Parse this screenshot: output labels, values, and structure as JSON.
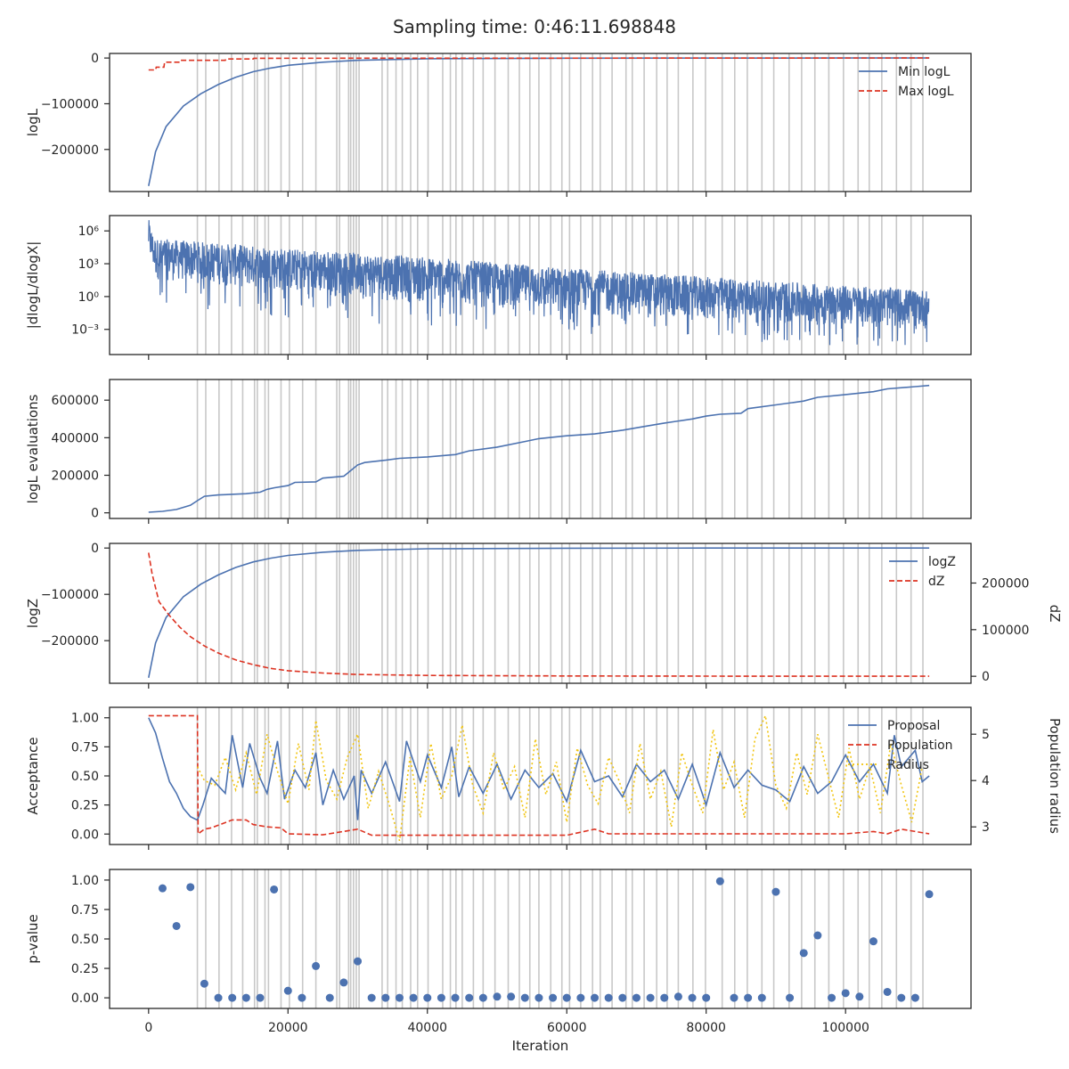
{
  "title": "Sampling time: 0:46:11.698848",
  "xlabel": "Iteration",
  "xticks": [
    0,
    20000,
    40000,
    60000,
    80000,
    100000
  ],
  "xtick_labels": [
    "0",
    "20000",
    "40000",
    "60000",
    "80000",
    "100000"
  ],
  "xlim": [
    -5600,
    118000
  ],
  "colors": {
    "blue": "#4c72b0",
    "red": "#dd3322",
    "gold": "#f1c40f",
    "vline": "#c8c8c8",
    "axis": "#262626"
  },
  "chart_data": [
    {
      "id": "logL",
      "type": "line",
      "ylabel": "logL",
      "ylim": [
        -292000,
        10000
      ],
      "yticks": [
        0,
        -100000,
        -200000
      ],
      "ytick_labels": [
        "0",
        "−100000",
        "−200000"
      ],
      "legend": {
        "placement": "upper-right",
        "entries": [
          "Min logL",
          "Max logL"
        ]
      },
      "series": [
        {
          "name": "Min logL",
          "style": "solid",
          "color": "#4c72b0",
          "x": [
            0,
            1000,
            2500,
            5000,
            7500,
            10000,
            12500,
            15000,
            17500,
            20000,
            25000,
            30000,
            40000,
            60000,
            80000,
            100000,
            112000
          ],
          "y": [
            -280000,
            -205000,
            -150000,
            -105000,
            -78000,
            -58000,
            -42000,
            -30000,
            -22000,
            -16000,
            -9000,
            -5000,
            -1500,
            -300,
            -80,
            -20,
            -5
          ]
        },
        {
          "name": "Max logL",
          "style": "dashed",
          "color": "#dd3322",
          "x": [
            0,
            1000,
            1100,
            2200,
            2300,
            4500,
            4600,
            11000,
            11100,
            15000,
            15100,
            112000
          ],
          "y": [
            -26000,
            -26000,
            -20000,
            -20000,
            -9000,
            -9000,
            -5000,
            -5000,
            -2000,
            -2000,
            -500,
            0
          ]
        }
      ]
    },
    {
      "id": "dlogL",
      "type": "line",
      "ylabel": "|dlogL/dlogX|",
      "scale": "log",
      "ylim_log10": [
        -5.3,
        7.4
      ],
      "yticks_log10": [
        6,
        3,
        0,
        -3
      ],
      "ytick_labels": [
        "10⁶",
        "10³",
        "10⁰",
        "10⁻³"
      ],
      "series": [
        {
          "name": "",
          "style": "noisy",
          "color": "#4c72b0",
          "x": [
            0,
            500,
            1000,
            10000,
            20000,
            40000,
            60000,
            80000,
            100000,
            112000
          ],
          "y_upper_log10": [
            7.1,
            5.9,
            5.3,
            4.9,
            4.4,
            3.6,
            2.6,
            1.8,
            1.0,
            0.6
          ],
          "y_lower_log10": [
            3.5,
            2.5,
            1.5,
            1.0,
            0.3,
            -0.7,
            -1.6,
            -2.3,
            -2.8,
            -3.0
          ],
          "y_min_log10": [
            0.0,
            -0.5,
            -1.5,
            -1.5,
            -2.0,
            -2.8,
            -3.5,
            -4.0,
            -4.5,
            -4.5
          ]
        }
      ]
    },
    {
      "id": "evals",
      "type": "line",
      "ylabel": "logL evaluations",
      "ylim": [
        -30000,
        710000
      ],
      "yticks": [
        0,
        200000,
        400000,
        600000
      ],
      "ytick_labels": [
        "0",
        "200000",
        "400000",
        "600000"
      ],
      "series": [
        {
          "name": "",
          "style": "solid",
          "color": "#4c72b0",
          "x": [
            0,
            2000,
            4000,
            6000,
            7000,
            8000,
            10000,
            14000,
            16000,
            17000,
            18000,
            20000,
            21000,
            24000,
            25000,
            28000,
            29000,
            30000,
            31000,
            34000,
            36000,
            40000,
            44000,
            46000,
            50000,
            54000,
            56000,
            60000,
            64000,
            68000,
            72000,
            74000,
            78000,
            80000,
            82000,
            85000,
            86000,
            90000,
            94000,
            96000,
            100000,
            104000,
            106000,
            110000,
            112000
          ],
          "y": [
            3000,
            8000,
            18000,
            40000,
            65000,
            88000,
            95000,
            102000,
            110000,
            125000,
            133000,
            145000,
            162000,
            165000,
            185000,
            195000,
            225000,
            255000,
            268000,
            280000,
            290000,
            298000,
            310000,
            330000,
            350000,
            380000,
            395000,
            410000,
            420000,
            440000,
            465000,
            478000,
            500000,
            515000,
            525000,
            530000,
            555000,
            575000,
            595000,
            615000,
            630000,
            645000,
            660000,
            672000,
            678000
          ]
        }
      ]
    },
    {
      "id": "logZ",
      "type": "line",
      "ylabel": "logZ",
      "ylim": [
        -292000,
        10000
      ],
      "yticks": [
        0,
        -100000,
        -200000
      ],
      "ytick_labels": [
        "0",
        "−100000",
        "−200000"
      ],
      "y2label": "dZ",
      "y2lim": [
        -15000,
        285000
      ],
      "y2ticks": [
        0,
        100000,
        200000
      ],
      "y2tick_labels": [
        "0",
        "100000",
        "200000"
      ],
      "legend": {
        "placement": "upper-right",
        "entries": [
          "logZ",
          "dZ"
        ]
      },
      "series": [
        {
          "name": "logZ",
          "axis": "left",
          "style": "solid",
          "color": "#4c72b0",
          "x": [
            0,
            1000,
            2500,
            5000,
            7500,
            10000,
            12500,
            15000,
            17500,
            20000,
            25000,
            30000,
            40000,
            60000,
            80000,
            100000,
            112000
          ],
          "y": [
            -280000,
            -205000,
            -150000,
            -105000,
            -78000,
            -58000,
            -42000,
            -30000,
            -22000,
            -16000,
            -9000,
            -5000,
            -1500,
            -300,
            -80,
            -20,
            -5
          ]
        },
        {
          "name": "dZ",
          "axis": "right",
          "style": "dashed",
          "color": "#dd3322",
          "x": [
            0,
            500,
            1500,
            3000,
            4500,
            6000,
            8000,
            10000,
            12500,
            15000,
            17500,
            20000,
            25000,
            30000,
            40000,
            60000,
            80000,
            100000,
            112000
          ],
          "y": [
            265000,
            220000,
            160000,
            130000,
            105000,
            85000,
            65000,
            50000,
            35000,
            25000,
            17000,
            12000,
            7000,
            4000,
            1800,
            700,
            300,
            150,
            100
          ]
        }
      ]
    },
    {
      "id": "acceptance",
      "type": "line",
      "ylabel": "Acceptance",
      "ylim": [
        -0.09,
        1.09
      ],
      "yticks": [
        0.0,
        0.25,
        0.5,
        0.75,
        1.0
      ],
      "ytick_labels": [
        "0.00",
        "0.25",
        "0.50",
        "0.75",
        "1.00"
      ],
      "y2label": "Population radius",
      "y2lim": [
        2.62,
        5.58
      ],
      "y2ticks": [
        3,
        4,
        5
      ],
      "y2tick_labels": [
        "3",
        "4",
        "5"
      ],
      "legend": {
        "placement": "upper-right",
        "entries": [
          "Proposal",
          "Population",
          "Radius"
        ]
      },
      "series": [
        {
          "name": "Proposal",
          "axis": "left",
          "style": "solid",
          "color": "#4c72b0",
          "x": [
            0,
            1000,
            2000,
            3000,
            4000,
            5000,
            6000,
            7000,
            7800,
            9000,
            11000,
            12000,
            13500,
            14500,
            16000,
            17000,
            18500,
            19500,
            21000,
            22500,
            24000,
            25000,
            26500,
            28000,
            29500,
            30000,
            30500,
            32000,
            34000,
            36000,
            37000,
            39000,
            40000,
            42000,
            43500,
            44500,
            46000,
            48000,
            50000,
            52000,
            54000,
            56000,
            58000,
            60000,
            62000,
            64000,
            66000,
            68000,
            70000,
            72000,
            74000,
            76000,
            78000,
            80000,
            82000,
            84000,
            86000,
            88000,
            90000,
            92000,
            94000,
            96000,
            98000,
            100000,
            102000,
            104000,
            106000,
            107000,
            108000,
            110000,
            111000,
            112000
          ],
          "y": [
            1.0,
            0.87,
            0.65,
            0.45,
            0.35,
            0.22,
            0.15,
            0.12,
            0.25,
            0.48,
            0.35,
            0.85,
            0.4,
            0.78,
            0.48,
            0.35,
            0.8,
            0.3,
            0.55,
            0.4,
            0.7,
            0.25,
            0.55,
            0.3,
            0.5,
            0.12,
            0.55,
            0.35,
            0.62,
            0.28,
            0.8,
            0.45,
            0.68,
            0.4,
            0.75,
            0.32,
            0.58,
            0.35,
            0.6,
            0.3,
            0.55,
            0.4,
            0.52,
            0.28,
            0.72,
            0.45,
            0.5,
            0.32,
            0.6,
            0.45,
            0.55,
            0.3,
            0.6,
            0.25,
            0.7,
            0.4,
            0.55,
            0.42,
            0.38,
            0.28,
            0.58,
            0.35,
            0.45,
            0.68,
            0.45,
            0.6,
            0.35,
            0.85,
            0.58,
            0.72,
            0.45,
            0.5
          ]
        },
        {
          "name": "Population",
          "axis": "right",
          "style": "dashed",
          "color": "#dd3322",
          "x": [
            0,
            7000,
            7100,
            8000,
            9000,
            12000,
            14000,
            15000,
            17000,
            19000,
            20000,
            25000,
            30000,
            32000,
            34000,
            50000,
            60000,
            64000,
            66000,
            80000,
            100000,
            104000,
            106000,
            108000,
            112000
          ],
          "y": [
            5.4,
            5.4,
            2.85,
            2.95,
            2.98,
            3.15,
            3.15,
            3.05,
            3.0,
            2.98,
            2.85,
            2.83,
            2.95,
            2.82,
            2.82,
            2.82,
            2.82,
            2.95,
            2.85,
            2.85,
            2.85,
            2.9,
            2.85,
            2.95,
            2.85
          ]
        },
        {
          "name": "Radius",
          "axis": "right",
          "style": "dotted",
          "color": "#f1c40f",
          "x": [
            7000,
            8000,
            9500,
            11000,
            12500,
            14000,
            15500,
            17000,
            18500,
            20000,
            21500,
            23000,
            24000,
            25500,
            27000,
            28500,
            30000,
            31500,
            33000,
            34500,
            36000,
            37500,
            39000,
            40500,
            42000,
            43500,
            45000,
            46500,
            48000,
            49500,
            51000,
            52500,
            54000,
            55500,
            57000,
            58500,
            60000,
            61500,
            63000,
            64500,
            66000,
            67500,
            69000,
            70500,
            72000,
            73500,
            75000,
            76500,
            78000,
            79500,
            81000,
            82500,
            84000,
            85500,
            87000,
            88500,
            90000,
            91500,
            93000,
            94500,
            96000,
            97500,
            99000,
            100500,
            102000,
            103500,
            105000,
            106500,
            108000,
            109500,
            111000
          ],
          "y": [
            4.3,
            4.0,
            3.9,
            4.5,
            3.8,
            4.6,
            3.7,
            5.0,
            4.2,
            3.5,
            4.8,
            3.8,
            5.3,
            4.0,
            3.6,
            4.5,
            5.0,
            3.4,
            4.2,
            3.5,
            2.7,
            4.5,
            3.2,
            4.8,
            3.6,
            4.1,
            5.2,
            3.9,
            3.3,
            4.6,
            3.8,
            4.3,
            3.2,
            4.9,
            3.7,
            4.4,
            3.1,
            4.7,
            3.9,
            3.5,
            4.5,
            4.0,
            3.3,
            4.8,
            3.6,
            4.2,
            3.0,
            4.6,
            3.9,
            3.3,
            5.1,
            3.8,
            4.4,
            3.2,
            4.9,
            5.4,
            3.9,
            3.4,
            4.6,
            3.7,
            5.0,
            4.1,
            3.2,
            4.7,
            3.6,
            4.3,
            3.3,
            4.8,
            3.9,
            3.1,
            4.3
          ]
        }
      ]
    },
    {
      "id": "pvalue",
      "type": "scatter",
      "ylabel": "p-value",
      "ylim": [
        -0.09,
        1.09
      ],
      "yticks": [
        0.0,
        0.25,
        0.5,
        0.75,
        1.0
      ],
      "ytick_labels": [
        "0.00",
        "0.25",
        "0.50",
        "0.75",
        "1.00"
      ],
      "series": [
        {
          "name": "",
          "color": "#4c72b0",
          "x": [
            2000,
            4000,
            6000,
            8000,
            10000,
            12000,
            14000,
            16000,
            18000,
            20000,
            22000,
            24000,
            26000,
            28000,
            30000,
            32000,
            34000,
            36000,
            38000,
            40000,
            42000,
            44000,
            46000,
            48000,
            50000,
            52000,
            54000,
            56000,
            58000,
            60000,
            62000,
            64000,
            66000,
            68000,
            70000,
            72000,
            74000,
            76000,
            78000,
            80000,
            82000,
            84000,
            86000,
            88000,
            90000,
            92000,
            94000,
            96000,
            98000,
            100000,
            102000,
            104000,
            106000,
            108000,
            110000,
            112000
          ],
          "y": [
            0.93,
            0.61,
            0.94,
            0.12,
            0.0,
            0.0,
            0.0,
            0.0,
            0.92,
            0.06,
            0.0,
            0.27,
            0.0,
            0.13,
            0.31,
            0.0,
            0.0,
            0.0,
            0.0,
            0.0,
            0.0,
            0.0,
            0.0,
            0.0,
            0.01,
            0.01,
            0.0,
            0.0,
            0.0,
            0.0,
            0.0,
            0.0,
            0.0,
            0.0,
            0.0,
            0.0,
            0.0,
            0.01,
            0.0,
            0.0,
            0.99,
            0.0,
            0.0,
            0.0,
            0.9,
            0.0,
            0.38,
            0.53,
            0.0,
            0.04,
            0.01,
            0.48,
            0.05,
            0.0,
            0.0,
            0.88
          ]
        }
      ]
    }
  ],
  "vlines": [
    7000,
    8200,
    10100,
    11900,
    13500,
    15200,
    15600,
    16700,
    17200,
    19000,
    20200,
    22100,
    24000,
    27000,
    27400,
    28700,
    29000,
    29400,
    29800,
    30200,
    33500,
    34300,
    35500,
    36400,
    37600,
    38600,
    40100,
    42200,
    43300,
    44100,
    45000,
    46600,
    48000,
    49700,
    51600,
    53200,
    54700,
    56000,
    57700,
    59300,
    60400,
    62000,
    63700,
    64800,
    66500,
    68500,
    69400,
    71100,
    72900,
    74400,
    76000,
    78100,
    79900,
    82300,
    84100,
    85900,
    88000,
    89700,
    91900,
    93700,
    95600,
    97600,
    99700,
    101800,
    103400,
    105200,
    107300,
    109400,
    111100
  ]
}
